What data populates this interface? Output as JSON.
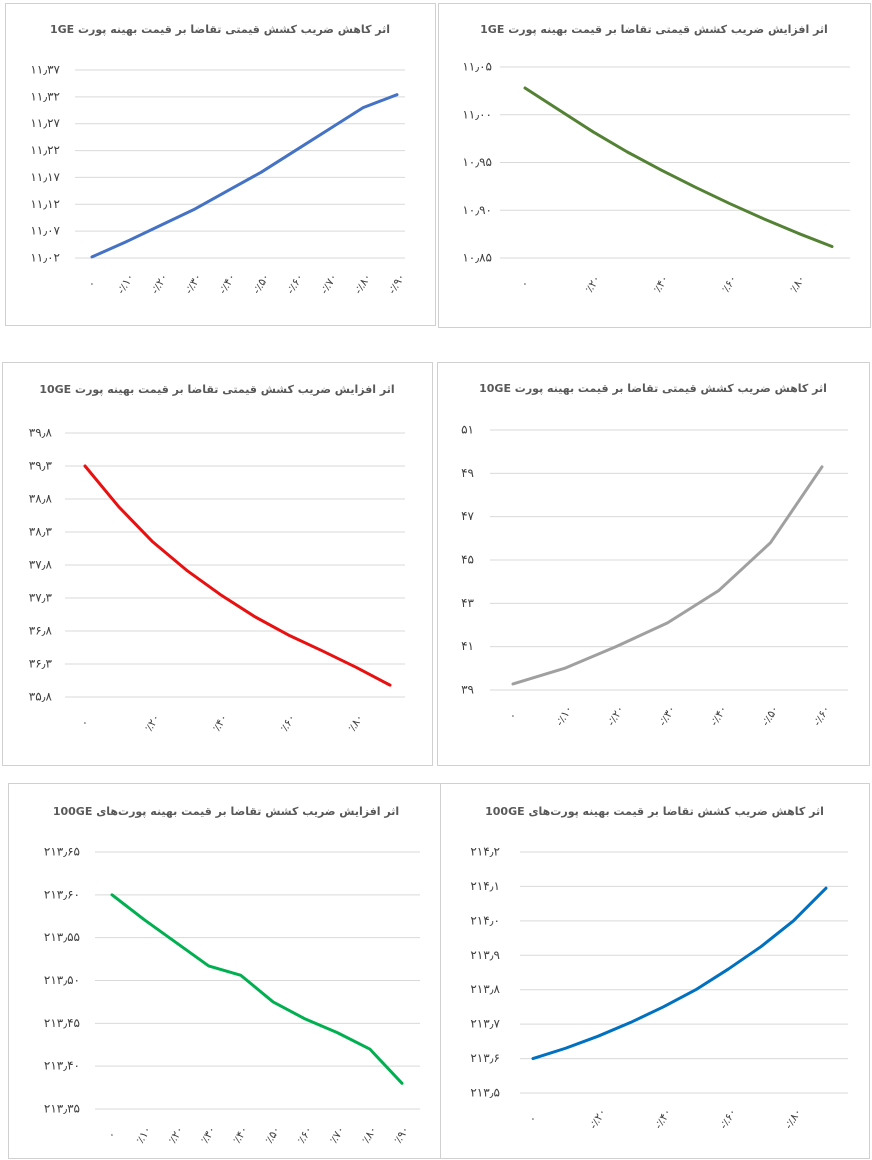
{
  "chart_data": [
    {
      "type": "line",
      "title": "اثر کاهش ضریب کشش قیمتی تقاضا بر قیمت بهینه پورت 1GE",
      "categories": [
        "۰",
        "-٪۱۰",
        "-٪۲۰",
        "-٪۳۰",
        "-٪۴۰",
        "-٪۵۰",
        "-٪۶۰",
        "-٪۷۰",
        "-٪۸۰",
        "-٪۹۰"
      ],
      "values": [
        11.022,
        11.05,
        11.08,
        11.11,
        11.145,
        11.18,
        11.22,
        11.26,
        11.3,
        11.324
      ],
      "color": "#4472c4",
      "grid": true,
      "ylim": [
        11.02,
        11.37
      ],
      "yticks": [
        {
          "value": 11.02,
          "label": "۱۱٫۰۲"
        },
        {
          "value": 11.07,
          "label": "۱۱٫۰۷"
        },
        {
          "value": 11.12,
          "label": "۱۱٫۱۲"
        },
        {
          "value": 11.17,
          "label": "۱۱٫۱۷"
        },
        {
          "value": 11.22,
          "label": "۱۱٫۲۲"
        },
        {
          "value": 11.27,
          "label": "۱۱٫۲۷"
        },
        {
          "value": 11.32,
          "label": "۱۱٫۳۲"
        },
        {
          "value": 11.37,
          "label": "۱۱٫۳۷"
        }
      ]
    },
    {
      "type": "line",
      "title": "اثر افزایش ضریب کشش قیمتی تقاضا بر قیمت بهینه پورت 1GE",
      "categories": [
        "۰",
        null,
        "٪۲۰",
        null,
        "٪۴۰",
        null,
        "٪۶۰",
        null,
        "٪۸۰",
        null
      ],
      "values": [
        11.028,
        11.005,
        10.982,
        10.961,
        10.942,
        10.924,
        10.907,
        10.891,
        10.876,
        10.862
      ],
      "color": "#548235",
      "grid": true,
      "ylim": [
        10.85,
        11.05
      ],
      "yticks": [
        {
          "value": 10.85,
          "label": "۱۰٫۸۵"
        },
        {
          "value": 10.9,
          "label": "۱۰٫۹۰"
        },
        {
          "value": 10.95,
          "label": "۱۰٫۹۵"
        },
        {
          "value": 11.0,
          "label": "۱۱٫۰۰"
        },
        {
          "value": 11.05,
          "label": "۱۱٫۰۵"
        }
      ]
    },
    {
      "type": "line",
      "title": "اثر افزایش ضریب کشش قیمتی تقاضا بر قیمت بهینه پورت 10GE",
      "categories": [
        "۰",
        null,
        "٪۲۰",
        null,
        "٪۴۰",
        null,
        "٪۶۰",
        null,
        "٪۸۰",
        null
      ],
      "values": [
        39.3,
        38.68,
        38.15,
        37.72,
        37.35,
        37.02,
        36.74,
        36.5,
        36.25,
        35.98
      ],
      "color": "#e81010",
      "grid": true,
      "ylim": [
        35.8,
        39.8
      ],
      "yticks": [
        {
          "value": 35.8,
          "label": "۳۵٫۸"
        },
        {
          "value": 36.3,
          "label": "۳۶٫۳"
        },
        {
          "value": 36.8,
          "label": "۳۶٫۸"
        },
        {
          "value": 37.3,
          "label": "۳۷٫۳"
        },
        {
          "value": 37.8,
          "label": "۳۷٫۸"
        },
        {
          "value": 38.3,
          "label": "۳۸٫۳"
        },
        {
          "value": 38.8,
          "label": "۳۸٫۸"
        },
        {
          "value": 39.3,
          "label": "۳۹٫۳"
        },
        {
          "value": 39.8,
          "label": "۳۹٫۸"
        }
      ]
    },
    {
      "type": "line",
      "title": "اثر کاهش ضریب کشش قیمتی تقاضا بر قیمت بهینه پورت 10GE",
      "categories": [
        "۰",
        "-٪۱۰",
        "-٪۲۰",
        "-٪۳۰",
        "-٪۴۰",
        "-٪۵۰",
        "-٪۶۰"
      ],
      "values": [
        39.28,
        40.0,
        41.0,
        42.1,
        43.6,
        45.8,
        49.3
      ],
      "color": "#a0a0a0",
      "grid": true,
      "ylim": [
        39,
        51
      ],
      "yticks": [
        {
          "value": 39,
          "label": "۳۹"
        },
        {
          "value": 41,
          "label": "۴۱"
        },
        {
          "value": 43,
          "label": "۴۳"
        },
        {
          "value": 45,
          "label": "۴۵"
        },
        {
          "value": 47,
          "label": "۴۷"
        },
        {
          "value": 49,
          "label": "۴۹"
        },
        {
          "value": 51,
          "label": "۵۱"
        }
      ]
    },
    {
      "type": "line",
      "title": "اثر افزایش ضریب کشش تقاضا بر قیمت بهینه پورت‌های 100GE",
      "categories": [
        "۰",
        "٪۱۰",
        "٪۲۰",
        "٪۳۰",
        "٪۴۰",
        "٪۵۰",
        "٪۶۰",
        "٪۷۰",
        "٪۸۰",
        "٪۹۰"
      ],
      "values": [
        213.6,
        213.571,
        213.544,
        213.517,
        213.506,
        213.475,
        213.455,
        213.439,
        213.42,
        213.38
      ],
      "color": "#00b050",
      "grid": true,
      "ylim": [
        213.35,
        213.65
      ],
      "yticks": [
        {
          "value": 213.35,
          "label": "۲۱۳٫۳۵"
        },
        {
          "value": 213.4,
          "label": "۲۱۳٫۴۰"
        },
        {
          "value": 213.45,
          "label": "۲۱۳٫۴۵"
        },
        {
          "value": 213.5,
          "label": "۲۱۳٫۵۰"
        },
        {
          "value": 213.55,
          "label": "۲۱۳٫۵۵"
        },
        {
          "value": 213.6,
          "label": "۲۱۳٫۶۰"
        },
        {
          "value": 213.65,
          "label": "۲۱۳٫۶۵"
        }
      ]
    },
    {
      "type": "line",
      "title": "اثر کاهش ضریب کشش تقاضا بر قیمت بهینه پورت‌های 100GE",
      "categories": [
        "۰",
        null,
        "-٪۲۰",
        null,
        "-٪۴۰",
        null,
        "-٪۶۰",
        null,
        "-٪۸۰",
        null
      ],
      "values": [
        213.6,
        213.63,
        213.665,
        213.705,
        213.75,
        213.8,
        213.86,
        213.925,
        214.0,
        214.095
      ],
      "color": "#0070c0",
      "grid": true,
      "ylim": [
        213.5,
        214.2
      ],
      "yticks": [
        {
          "value": 213.5,
          "label": "۲۱۳٫۵"
        },
        {
          "value": 213.6,
          "label": "۲۱۳٫۶"
        },
        {
          "value": 213.7,
          "label": "۲۱۳٫۷"
        },
        {
          "value": 213.8,
          "label": "۲۱۳٫۸"
        },
        {
          "value": 213.9,
          "label": "۲۱۳٫۹"
        },
        {
          "value": 214.0,
          "label": "۲۱۴٫۰"
        },
        {
          "value": 214.1,
          "label": "۲۱۴٫۱"
        },
        {
          "value": 214.2,
          "label": "۲۱۴٫۲"
        }
      ]
    }
  ]
}
